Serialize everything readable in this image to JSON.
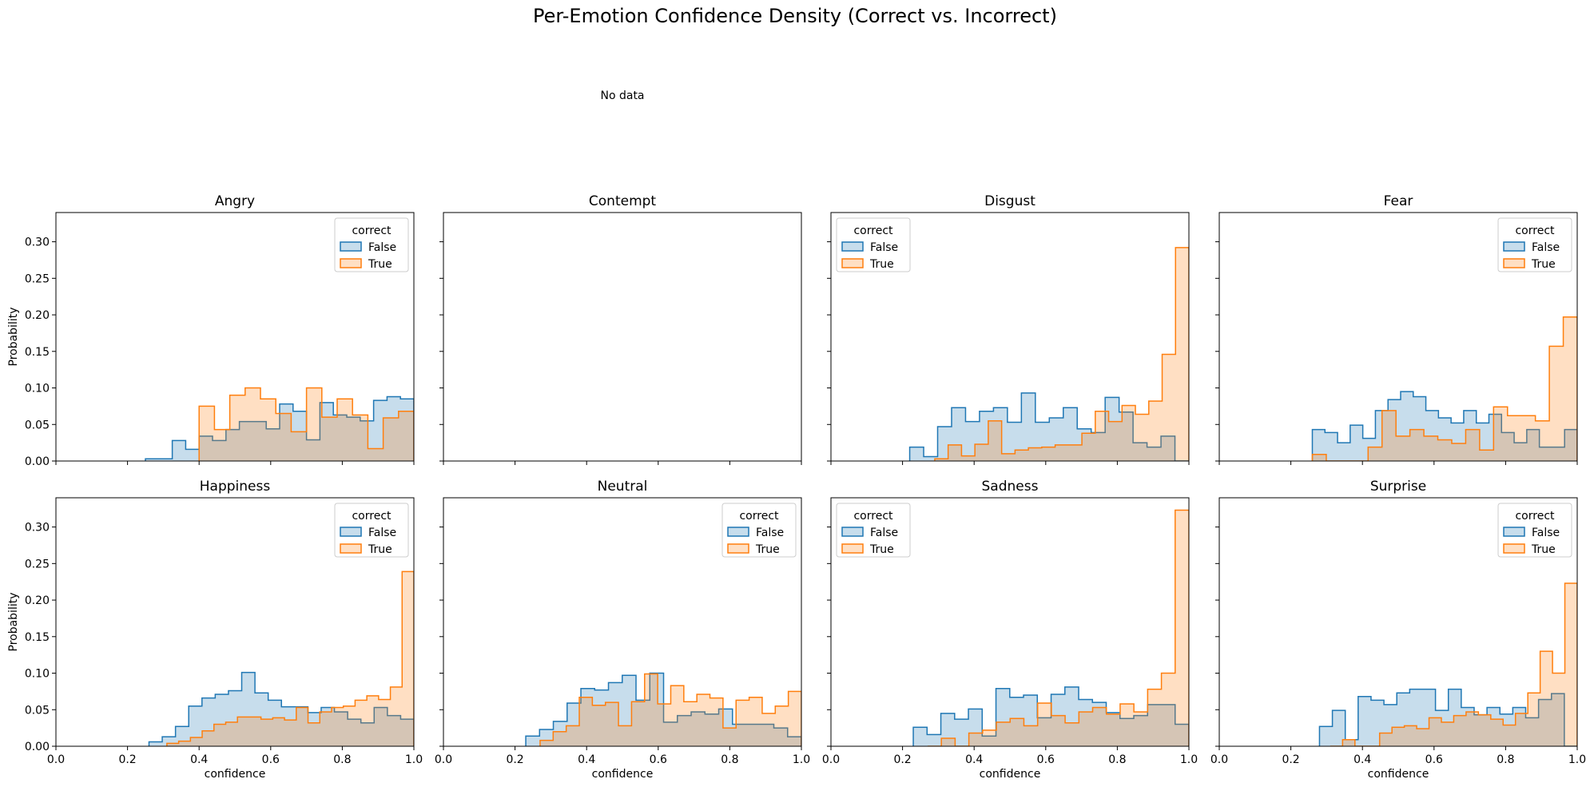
{
  "title": "Per-Emotion Confidence Density (Correct vs. Incorrect)",
  "no_data_text": "No data",
  "colors": {
    "False": "#1f77b4",
    "True": "#ff7f0e",
    "overlap": "#b9b9b9"
  },
  "chart_data": {
    "type": "histogram",
    "xlabel": "confidence",
    "ylabel": "Probability",
    "xlim": [
      0,
      1
    ],
    "ylim": [
      0,
      0.34
    ],
    "xticks": [
      "0.0",
      "0.2",
      "0.4",
      "0.6",
      "0.8",
      "1.0"
    ],
    "yticks": [
      "0.00",
      "0.05",
      "0.10",
      "0.15",
      "0.20",
      "0.25",
      "0.30"
    ],
    "legend_title": "correct",
    "legend_labels": [
      "False",
      "True"
    ],
    "panels": [
      {
        "title": "Angry",
        "legend_loc": "upper right",
        "False": {
          "start": 0.25,
          "end": 1.0,
          "values": [
            0.003,
            0.003,
            0.028,
            0.016,
            0.034,
            0.028,
            0.043,
            0.054,
            0.054,
            0.044,
            0.078,
            0.068,
            0.029,
            0.08,
            0.063,
            0.06,
            0.055,
            0.083,
            0.088,
            0.085
          ]
        },
        "True": {
          "start": 0.4,
          "end": 1.0,
          "values": [
            0.075,
            0.043,
            0.09,
            0.1,
            0.085,
            0.065,
            0.04,
            0.1,
            0.06,
            0.085,
            0.063,
            0.017,
            0.059,
            0.068
          ]
        }
      },
      {
        "title": "Contempt",
        "legend_loc": "none"
      },
      {
        "title": "Disgust",
        "legend_loc": "upper left",
        "False": {
          "start": 0.22,
          "end": 1.0,
          "values": [
            0.019,
            0.006,
            0.047,
            0.073,
            0.054,
            0.068,
            0.073,
            0.053,
            0.093,
            0.053,
            0.059,
            0.073,
            0.044,
            0.039,
            0.087,
            0.067,
            0.025,
            0.019,
            0.034,
            0.0
          ]
        },
        "True": {
          "start": 0.29,
          "end": 1.0,
          "values": [
            0.003,
            0.022,
            0.007,
            0.023,
            0.055,
            0.01,
            0.015,
            0.018,
            0.019,
            0.022,
            0.022,
            0.038,
            0.068,
            0.054,
            0.076,
            0.064,
            0.082,
            0.146,
            0.292
          ]
        }
      },
      {
        "title": "Fear",
        "legend_loc": "upper right",
        "False": {
          "start": 0.26,
          "end": 1.0,
          "values": [
            0.043,
            0.039,
            0.025,
            0.049,
            0.031,
            0.069,
            0.084,
            0.095,
            0.088,
            0.069,
            0.059,
            0.052,
            0.069,
            0.052,
            0.064,
            0.039,
            0.025,
            0.043,
            0.019,
            0.019,
            0.043
          ]
        },
        "True": {
          "start": 0.26,
          "end": 1.0,
          "values": [
            0.009,
            0.0,
            0.0,
            0.0,
            0.019,
            0.069,
            0.034,
            0.043,
            0.034,
            0.029,
            0.024,
            0.043,
            0.015,
            0.074,
            0.062,
            0.062,
            0.055,
            0.157,
            0.197
          ]
        }
      },
      {
        "title": "Happiness",
        "legend_loc": "upper right",
        "False": {
          "start": 0.26,
          "end": 1.0,
          "values": [
            0.006,
            0.013,
            0.027,
            0.055,
            0.066,
            0.071,
            0.076,
            0.101,
            0.073,
            0.063,
            0.054,
            0.054,
            0.046,
            0.053,
            0.047,
            0.037,
            0.032,
            0.053,
            0.042,
            0.037
          ]
        },
        "True": {
          "start": 0.31,
          "end": 1.0,
          "values": [
            0.004,
            0.007,
            0.012,
            0.021,
            0.03,
            0.033,
            0.04,
            0.04,
            0.037,
            0.039,
            0.036,
            0.053,
            0.032,
            0.047,
            0.053,
            0.055,
            0.063,
            0.069,
            0.064,
            0.081,
            0.239
          ]
        }
      },
      {
        "title": "Neutral",
        "legend_loc": "upper right",
        "False": {
          "start": 0.23,
          "end": 1.0,
          "values": [
            0.014,
            0.023,
            0.034,
            0.059,
            0.079,
            0.077,
            0.087,
            0.097,
            0.063,
            0.1,
            0.033,
            0.042,
            0.047,
            0.044,
            0.051,
            0.03,
            0.03,
            0.03,
            0.025,
            0.013
          ]
        },
        "True": {
          "start": 0.27,
          "end": 1.0,
          "values": [
            0.008,
            0.02,
            0.028,
            0.067,
            0.056,
            0.06,
            0.028,
            0.061,
            0.099,
            0.058,
            0.083,
            0.061,
            0.071,
            0.066,
            0.025,
            0.063,
            0.067,
            0.045,
            0.055,
            0.075
          ]
        }
      },
      {
        "title": "Sadness",
        "legend_loc": "upper left",
        "False": {
          "start": 0.23,
          "end": 1.0,
          "values": [
            0.026,
            0.016,
            0.045,
            0.037,
            0.051,
            0.014,
            0.079,
            0.067,
            0.07,
            0.039,
            0.071,
            0.081,
            0.064,
            0.06,
            0.046,
            0.038,
            0.042,
            0.057,
            0.057,
            0.03
          ]
        },
        "True": {
          "start": 0.27,
          "end": 1.0,
          "values": [
            0.0,
            0.011,
            0.0,
            0.018,
            0.022,
            0.033,
            0.038,
            0.028,
            0.059,
            0.042,
            0.032,
            0.047,
            0.053,
            0.044,
            0.058,
            0.047,
            0.078,
            0.1,
            0.323
          ]
        }
      },
      {
        "title": "Surprise",
        "legend_loc": "upper right",
        "False": {
          "start": 0.28,
          "end": 1.0,
          "values": [
            0.027,
            0.049,
            0.009,
            0.068,
            0.063,
            0.057,
            0.073,
            0.078,
            0.078,
            0.049,
            0.078,
            0.053,
            0.043,
            0.053,
            0.044,
            0.053,
            0.039,
            0.064,
            0.072,
            0.0
          ]
        },
        "True": {
          "start": 0.31,
          "end": 1.0,
          "values": [
            0.0,
            0.009,
            0.0,
            0.0,
            0.018,
            0.026,
            0.028,
            0.024,
            0.039,
            0.033,
            0.042,
            0.047,
            0.043,
            0.037,
            0.029,
            0.045,
            0.073,
            0.13,
            0.1,
            0.223
          ]
        }
      }
    ]
  }
}
